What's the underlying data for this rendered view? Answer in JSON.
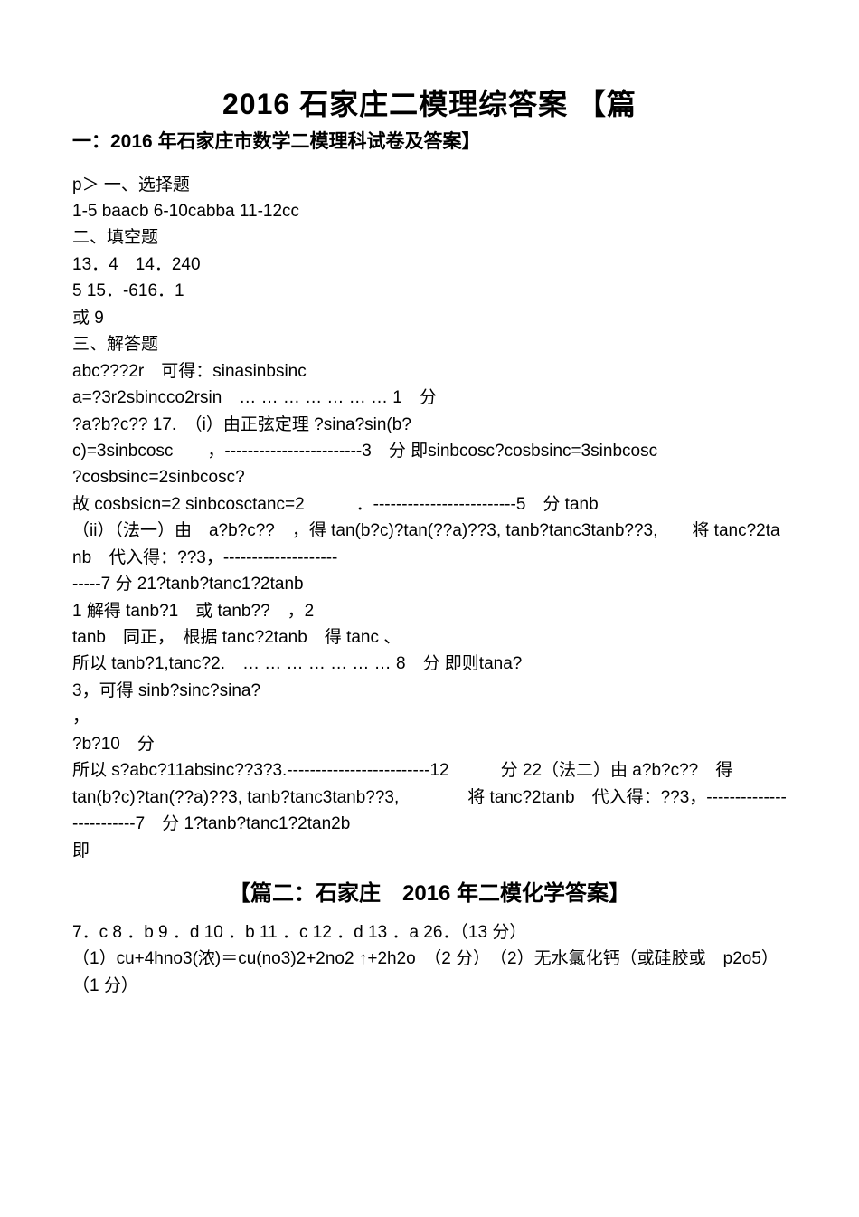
{
  "title": "2016 石家庄二模理综答案",
  "section1_title_prefix": "【篇",
  "section1_title": "一：2016 年石家庄市数学二模理科试卷及答案】",
  "lines": [
    "p＞ 一、选择题",
    "1-5 baacb 6-10cabba 11-12cc",
    "二、填空题",
    "13．4　14．240",
    "5 15．-616．1",
    "或 9",
    "三、解答题",
    "abc???2r　可得：sinasinbsinc",
    "a=?3r2sbincco2rsin　… … … … … … … 1　分",
    "?a?b?c?? 17.　（i）由正弦定理 ?sina?sin(b?",
    "c)=3sinbcosc　　，------------------------3　分 即sinbcosc?cosbsinc=3sinbcosc",
    "?cosbsinc=2sinbcosc?",
    "故 cosbsicn=2 sinbcosctanc=2　　　．-------------------------5　分 tanb",
    "（ii）（法一）由　a?b?c??　，得 tan(b?c)?tan(??a)??3, tanb?tanc3tanb??3,　　将 tanc?2tanb　代入得：??3，--------------------",
    "-----7 分 21?tanb?tanc1?2tanb",
    "1 解得 tanb?1　或 tanb??　，2",
    "tanb　同正，　根据 tanc?2tanb　得 tanc 、",
    "所以 tanb?1,tanc?2.　… … … … … … … 8　分 即则tana?",
    "3，可得 sinb?sinc?sina?",
    "，",
    "?b?10　分",
    "所以 s?abc?11absinc??3?3.-------------------------12　　　分 22（法二）由 a?b?c??　得",
    "tan(b?c)?tan(??a)??3, tanb?tanc3tanb??3,　　　　将 tanc?2tanb　代入得：??3，-------------------------7　分 1?tanb?tanc1?2tan2b",
    "即"
  ],
  "section2_title": "【篇二：石家庄　2016 年二模化学答案】",
  "section2_lines": [
    "7．c 8 ．b 9 ．d 10 ．b 11 ．c 12 ．d 13 ．a 26．（13 分）",
    "（1）cu+4hno3(浓)＝cu(no3)2+2no2 ↑+2h2o　（2 分）　（2）无水氯化钙（或硅胶或　p2o5）　（1 分）"
  ]
}
